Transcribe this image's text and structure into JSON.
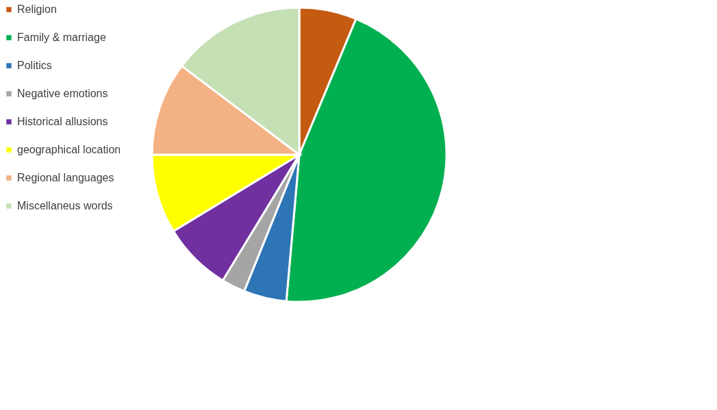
{
  "chart_data": {
    "type": "pie",
    "categories": [
      "Religion",
      "Family & marriage",
      "Politics",
      "Negative emotions",
      "Historical allusions",
      "geographical location",
      "Regional languages",
      "Miscellaneus words"
    ],
    "values": [
      6.3,
      45.1,
      4.7,
      2.6,
      7.6,
      8.7,
      10.3,
      14.7
    ],
    "colors": [
      "#c55a11",
      "#00b050",
      "#2e75b6",
      "#a5a5a5",
      "#7030a0",
      "#ffff00",
      "#f4b183",
      "#c5e0b4"
    ],
    "legend": "left"
  }
}
